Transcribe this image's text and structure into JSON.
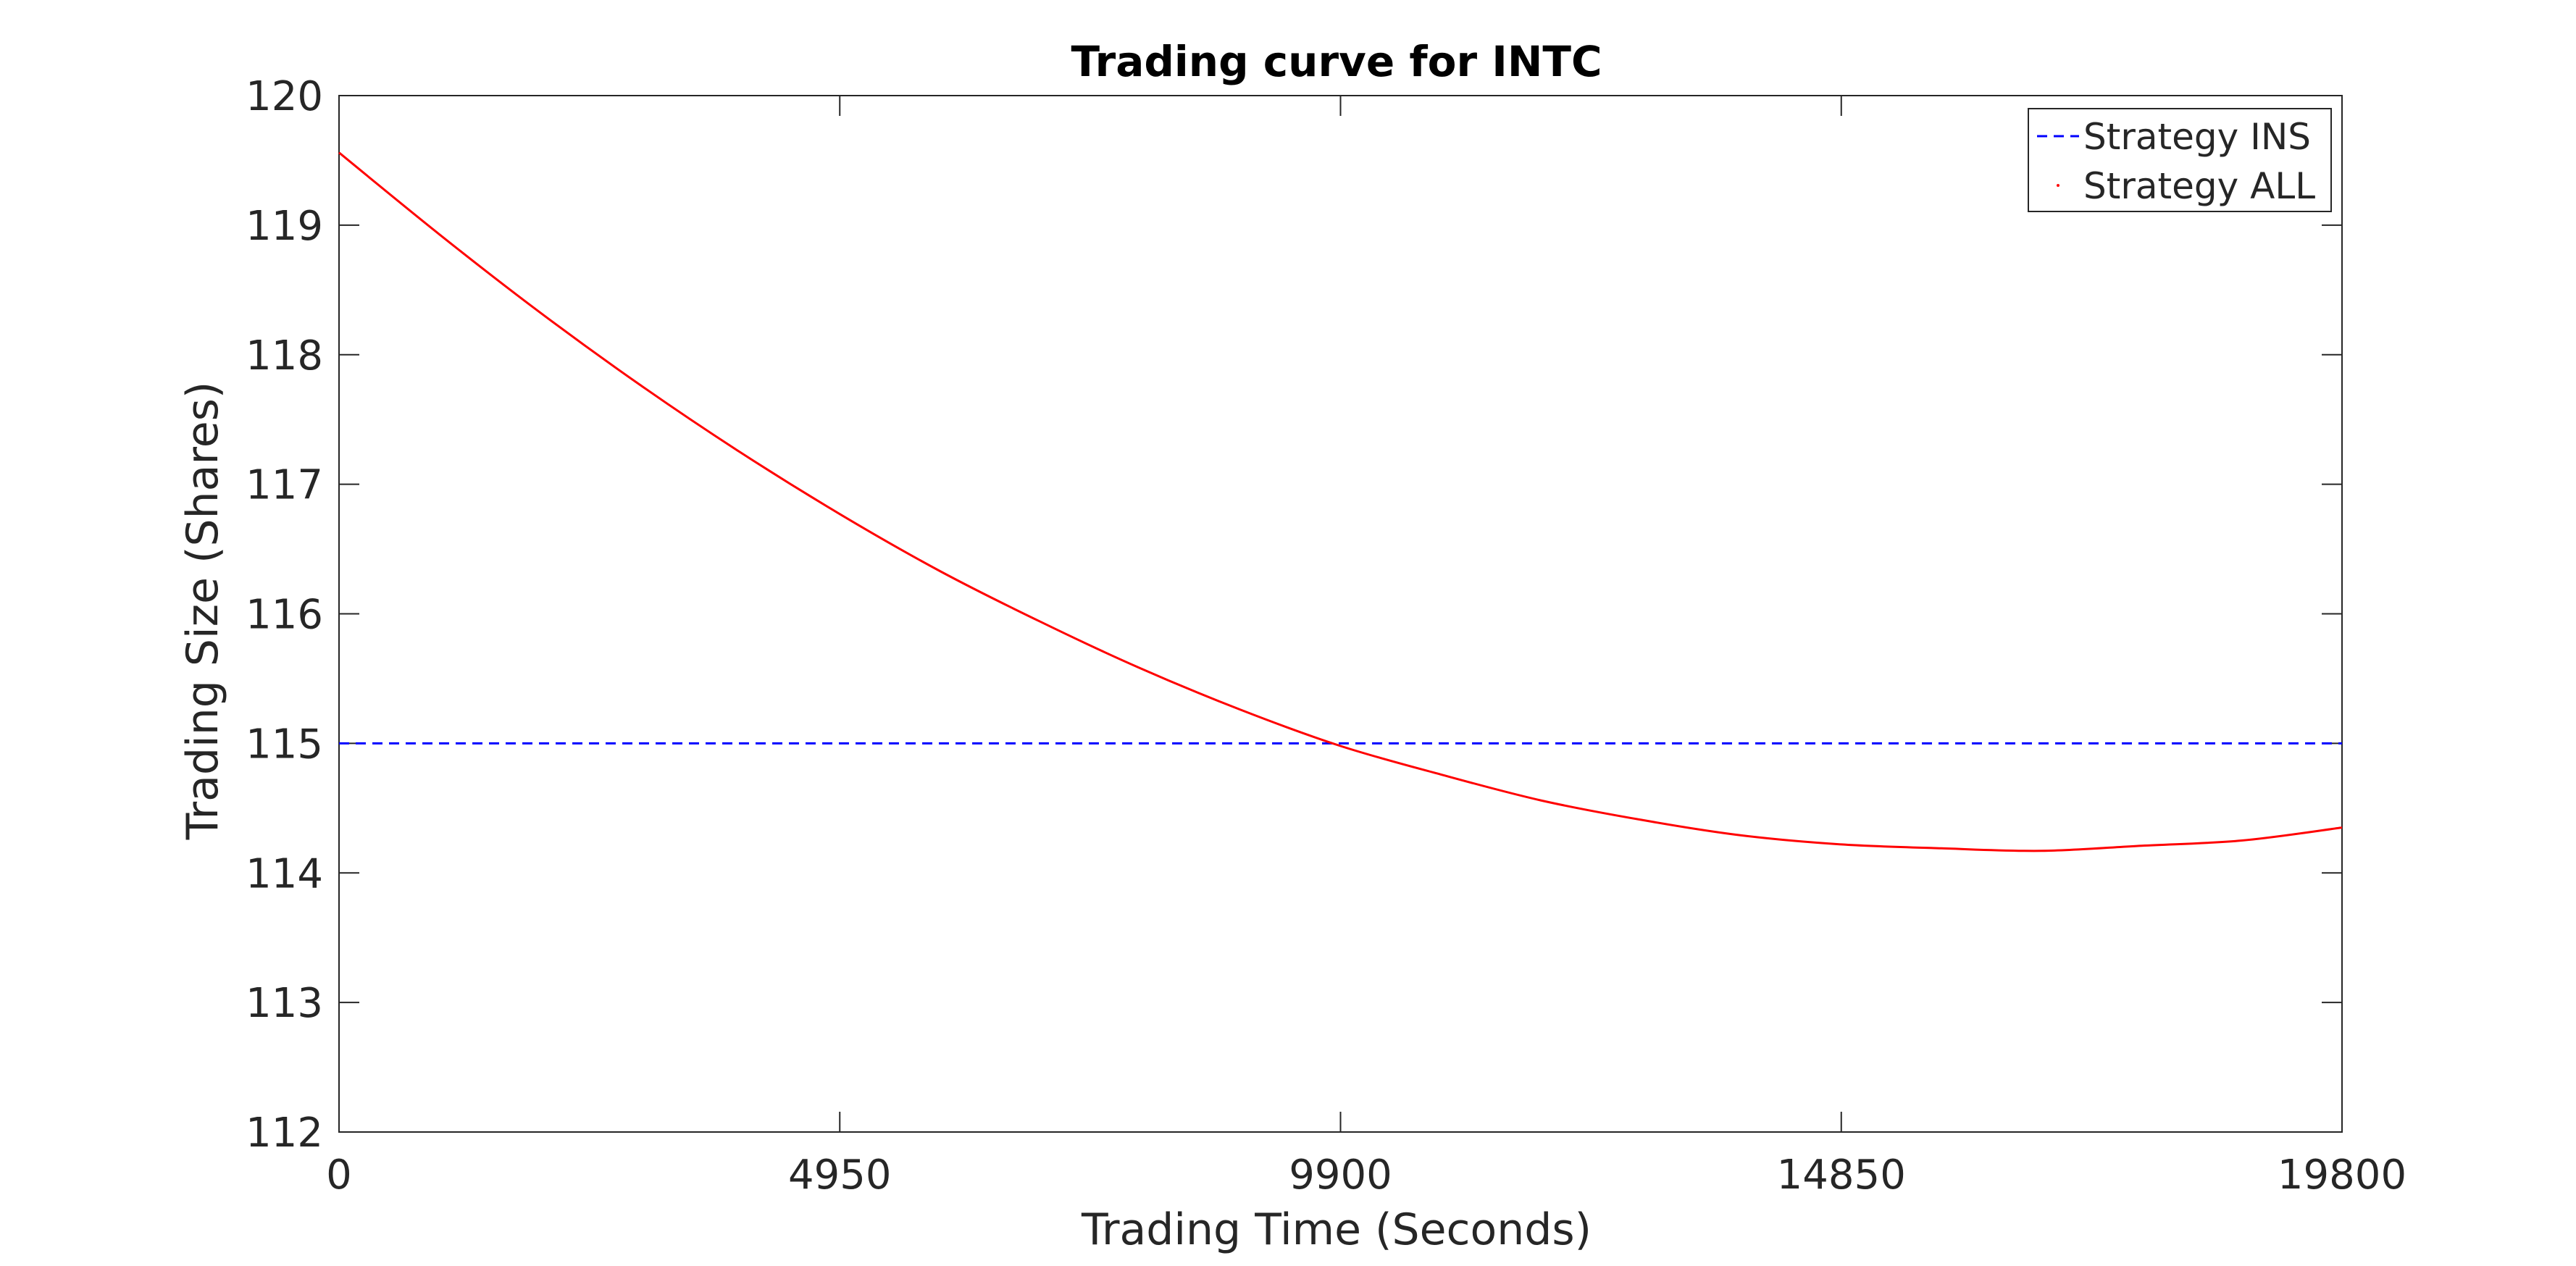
{
  "chart_data": {
    "type": "line",
    "title": "Trading curve for INTC",
    "xlabel": "Trading Time (Seconds)",
    "ylabel": "Trading Size (Shares)",
    "xlim": [
      0,
      19800
    ],
    "ylim": [
      112,
      120
    ],
    "xticks": [
      0,
      4950,
      9900,
      14850,
      19800
    ],
    "yticks": [
      112,
      113,
      114,
      115,
      116,
      117,
      118,
      119,
      120
    ],
    "grid": false,
    "legend_position": "top-right",
    "series": [
      {
        "name": "Strategy INS",
        "style": "dashed",
        "color": "#0000ff",
        "x": [
          0,
          19800
        ],
        "y": [
          115,
          115
        ]
      },
      {
        "name": "Strategy ALL",
        "style": "solid",
        "color": "#ff0000",
        "x": [
          0,
          990,
          1980,
          2970,
          3960,
          4950,
          5940,
          6930,
          7920,
          8910,
          9900,
          10890,
          11880,
          12870,
          13860,
          14850,
          15840,
          16830,
          17820,
          18810,
          19800
        ],
        "y": [
          119.56,
          118.93,
          118.33,
          117.77,
          117.25,
          116.77,
          116.33,
          115.94,
          115.58,
          115.26,
          114.98,
          114.76,
          114.56,
          114.41,
          114.29,
          114.22,
          114.19,
          114.17,
          114.21,
          114.25,
          114.35
        ]
      }
    ]
  }
}
